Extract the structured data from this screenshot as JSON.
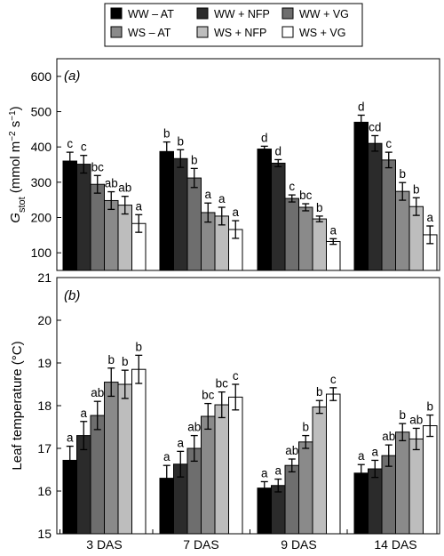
{
  "legend": {
    "entries": [
      {
        "label": "WW – AT",
        "color": "#000000"
      },
      {
        "label": "WW + NFP",
        "color": "#2b2b2b"
      },
      {
        "label": "WW + VG",
        "color": "#6e6e6e"
      },
      {
        "label": "WS – AT",
        "color": "#8a8a8a"
      },
      {
        "label": "WS + NFP",
        "color": "#bdbdbd"
      },
      {
        "label": "WS + VG",
        "color": "#ffffff"
      }
    ]
  },
  "chart_data": [
    {
      "type": "bar",
      "panel_label": "(a)",
      "ylabel": "Gstot (mmol m−2 s−1)",
      "ylabel_parts": {
        "main": "G",
        "sub": "stot",
        "pre": " (mmol m",
        "sup1": "−2",
        "mid": " s",
        "sup2": "−1",
        "post": ")"
      },
      "ylim": [
        50,
        650
      ],
      "yticks": [
        100,
        200,
        300,
        400,
        500,
        600
      ],
      "categories": [
        "3 DAS",
        "7 DAS",
        "9 DAS",
        "14 DAS"
      ],
      "series": [
        {
          "name": "WW – AT",
          "values": [
            360,
            387,
            394,
            470
          ],
          "errors": [
            25,
            27,
            8,
            20
          ],
          "letters": [
            "c",
            "b",
            "d",
            "d"
          ]
        },
        {
          "name": "WW + NFP",
          "values": [
            351,
            367,
            354,
            410
          ],
          "errors": [
            25,
            25,
            10,
            22
          ],
          "letters": [
            "c",
            "b",
            "d",
            "cd"
          ]
        },
        {
          "name": "WW + VG",
          "values": [
            294,
            312,
            254,
            363
          ],
          "errors": [
            25,
            27,
            10,
            22
          ],
          "letters": [
            "bc",
            "b",
            "c",
            "c"
          ]
        },
        {
          "name": "WS – AT",
          "values": [
            248,
            214,
            229,
            274
          ],
          "errors": [
            25,
            27,
            10,
            25
          ],
          "letters": [
            "ab",
            "a",
            "bc",
            "b"
          ]
        },
        {
          "name": "WS + NFP",
          "values": [
            235,
            204,
            196,
            231
          ],
          "errors": [
            25,
            25,
            8,
            25
          ],
          "letters": [
            "ab",
            "a",
            "b",
            "b"
          ]
        },
        {
          "name": "WS + VG",
          "values": [
            183,
            166,
            132,
            151
          ],
          "errors": [
            25,
            25,
            8,
            25
          ],
          "letters": [
            "a",
            "a",
            "a",
            "a"
          ]
        }
      ]
    },
    {
      "type": "bar",
      "panel_label": "(b)",
      "ylabel": "Leaf temperature (°C)",
      "ylim": [
        15,
        21
      ],
      "yticks": [
        15,
        16,
        17,
        18,
        19,
        20,
        21
      ],
      "categories": [
        "3 DAS",
        "7 DAS",
        "9 DAS",
        "14 DAS"
      ],
      "series": [
        {
          "name": "WW – AT",
          "values": [
            16.72,
            16.3,
            16.07,
            16.42
          ],
          "errors": [
            0.33,
            0.3,
            0.15,
            0.2
          ],
          "letters": [
            "a",
            "a",
            "a",
            "a"
          ]
        },
        {
          "name": "WW + NFP",
          "values": [
            17.3,
            16.63,
            16.13,
            16.52
          ],
          "errors": [
            0.33,
            0.3,
            0.15,
            0.2
          ],
          "letters": [
            "a",
            "a",
            "a",
            "a"
          ]
        },
        {
          "name": "WW + VG",
          "values": [
            17.77,
            17.0,
            16.6,
            16.83
          ],
          "errors": [
            0.33,
            0.3,
            0.15,
            0.25
          ],
          "letters": [
            "ab",
            "ab",
            "ab",
            "ab"
          ]
        },
        {
          "name": "WS – AT",
          "values": [
            18.55,
            17.75,
            17.15,
            17.38
          ],
          "errors": [
            0.33,
            0.3,
            0.15,
            0.2
          ],
          "letters": [
            "b",
            "bc",
            "b",
            "b"
          ]
        },
        {
          "name": "WS + NFP",
          "values": [
            18.5,
            18.02,
            17.97,
            17.22
          ],
          "errors": [
            0.33,
            0.3,
            0.15,
            0.25
          ],
          "letters": [
            "b",
            "bc",
            "b",
            "ab"
          ]
        },
        {
          "name": "WS + VG",
          "values": [
            18.85,
            18.2,
            18.27,
            17.53
          ],
          "errors": [
            0.33,
            0.3,
            0.15,
            0.25
          ],
          "letters": [
            "b",
            "c",
            "c",
            "b"
          ]
        }
      ]
    }
  ]
}
